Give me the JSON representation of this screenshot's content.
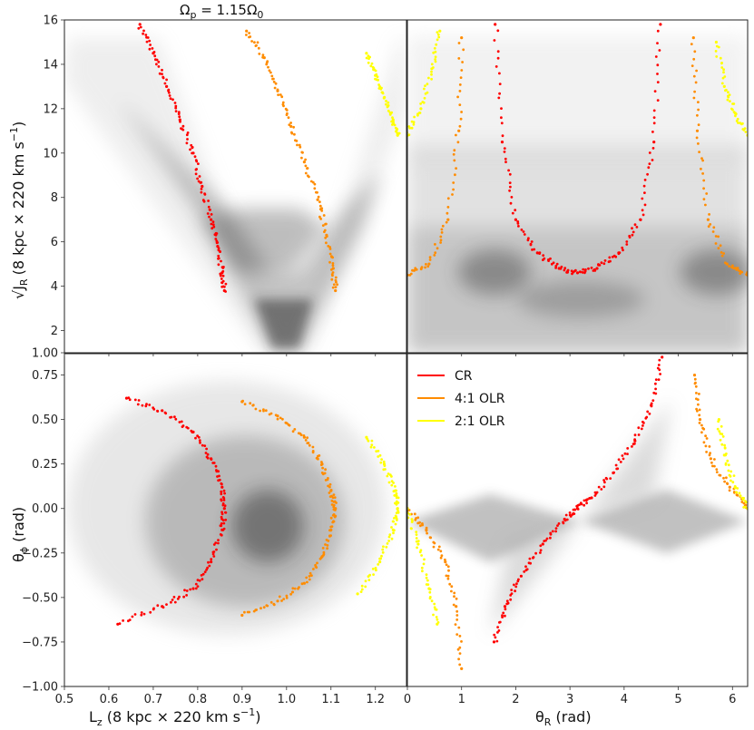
{
  "figure": {
    "title": "Ω",
    "title_sub": "p",
    "title_rest": " = 1.15Ω",
    "title_sub2": "0"
  },
  "colors": {
    "CR": "#ff0000",
    "OLR41": "#ff8c00",
    "OLR21": "#ffff00",
    "density": "#000000"
  },
  "legend": {
    "entries": [
      {
        "label": "CR",
        "color": "#ff0000"
      },
      {
        "label": "4:1 OLR",
        "color": "#ff8c00"
      },
      {
        "label": "2:1 OLR",
        "color": "#ffff00"
      }
    ]
  },
  "axes": {
    "ylabel_top": "(8 kpc × 220 km s",
    "ylabel_top_sqrt": "√J",
    "ylabel_top_sub": "R",
    "ylabel_top_sup": "−1",
    "ylabel_top_close": ")",
    "ylabel_bottom": "θ",
    "ylabel_bottom_sub": "ϕ",
    "ylabel_bottom_unit": " (rad)",
    "xlabel_left": "L",
    "xlabel_left_sub": "z",
    "xlabel_left_unit": " (8 kpc × 220 km s",
    "xlabel_left_sup": "−1",
    "xlabel_left_close": ")",
    "xlabel_right": "θ",
    "xlabel_right_sub": "R",
    "xlabel_right_unit": " (rad)"
  },
  "chart_data": [
    {
      "type": "scatter",
      "panel": "top-left",
      "xlim": [
        0.5,
        1.27
      ],
      "ylim": [
        1.0,
        16.0
      ],
      "yticks": [
        "1.00",
        "2",
        "4",
        "6",
        "8",
        "10",
        "12",
        "14",
        "16"
      ],
      "ytick_values": [
        1,
        2,
        4,
        6,
        8,
        10,
        12,
        14,
        16
      ],
      "series": [
        {
          "name": "CR",
          "color": "#ff0000",
          "x": [
            0.67,
            0.7,
            0.73,
            0.76,
            0.79,
            0.81,
            0.83,
            0.845,
            0.855,
            0.86
          ],
          "y": [
            15.8,
            14.5,
            13.0,
            11.5,
            10.0,
            8.5,
            7.0,
            5.8,
            4.6,
            3.8
          ]
        },
        {
          "name": "4:1 OLR",
          "color": "#ff8c00",
          "x": [
            0.91,
            0.95,
            0.98,
            1.01,
            1.04,
            1.07,
            1.09,
            1.105,
            1.11
          ],
          "y": [
            15.5,
            14.3,
            12.8,
            11.2,
            9.6,
            7.9,
            6.3,
            4.8,
            3.8
          ]
        },
        {
          "name": "2:1 OLR",
          "color": "#ffff00",
          "x": [
            1.18,
            1.2,
            1.22,
            1.24,
            1.25
          ],
          "y": [
            14.5,
            13.5,
            12.5,
            11.5,
            10.8
          ]
        }
      ]
    },
    {
      "type": "scatter",
      "panel": "top-right",
      "xlim": [
        0,
        6.28
      ],
      "ylim": [
        1.0,
        16.0
      ],
      "series": [
        {
          "name": "CR",
          "color": "#ff0000",
          "x": [
            1.62,
            1.75,
            2.0,
            2.4,
            2.8,
            3.14,
            3.5,
            3.9,
            4.3,
            4.55,
            4.67
          ],
          "y": [
            15.8,
            10.5,
            7.0,
            5.5,
            4.8,
            4.6,
            4.8,
            5.5,
            7.0,
            10.5,
            15.8
          ]
        },
        {
          "name": "4:1 OLR",
          "color": "#ff8c00",
          "x": [
            0.0,
            0.4,
            0.75,
            0.95,
            1.0
          ],
          "y": [
            4.5,
            5.0,
            7.0,
            11.0,
            15.2
          ]
        },
        {
          "name": "4:1 OLR",
          "color": "#ff8c00",
          "x": [
            5.28,
            5.35,
            5.55,
            5.9,
            6.28
          ],
          "y": [
            15.2,
            11.0,
            7.0,
            5.0,
            4.5
          ]
        },
        {
          "name": "2:1 OLR",
          "color": "#ffff00",
          "x": [
            0.0,
            0.25,
            0.45,
            0.6
          ],
          "y": [
            10.8,
            12.0,
            13.8,
            15.5
          ]
        },
        {
          "name": "2:1 OLR",
          "color": "#ffff00",
          "x": [
            5.7,
            5.85,
            6.05,
            6.28
          ],
          "y": [
            15.0,
            13.0,
            11.8,
            10.8
          ]
        }
      ]
    },
    {
      "type": "scatter",
      "panel": "bottom-left",
      "xlim": [
        0.5,
        1.27
      ],
      "ylim": [
        -1.0,
        0.87
      ],
      "xticks": [
        "0.5",
        "0.6",
        "0.7",
        "0.8",
        "0.9",
        "1.0",
        "1.1",
        "1.2"
      ],
      "xtick_values": [
        0.5,
        0.6,
        0.7,
        0.8,
        0.9,
        1.0,
        1.1,
        1.2
      ],
      "yticks": [
        "−1.00",
        "−0.75",
        "−0.50",
        "−0.25",
        "0.00",
        "0.25",
        "0.50",
        "0.75"
      ],
      "ytick_values": [
        -1.0,
        -0.75,
        -0.5,
        -0.25,
        0.0,
        0.25,
        0.5,
        0.75
      ],
      "series": [
        {
          "name": "CR",
          "color": "#ff0000",
          "x": [
            0.64,
            0.72,
            0.79,
            0.83,
            0.855,
            0.86,
            0.855,
            0.83,
            0.79,
            0.72,
            0.62
          ],
          "y": [
            0.62,
            0.55,
            0.43,
            0.28,
            0.12,
            0.0,
            -0.12,
            -0.3,
            -0.45,
            -0.55,
            -0.65
          ]
        },
        {
          "name": "4:1 OLR",
          "color": "#ff8c00",
          "x": [
            0.9,
            0.98,
            1.04,
            1.08,
            1.1,
            1.11,
            1.1,
            1.08,
            1.04,
            0.98,
            0.9
          ],
          "y": [
            0.6,
            0.52,
            0.4,
            0.25,
            0.1,
            0.0,
            -0.12,
            -0.27,
            -0.42,
            -0.52,
            -0.6
          ]
        },
        {
          "name": "2:1 OLR",
          "color": "#ffff00",
          "x": [
            1.18,
            1.22,
            1.245,
            1.25,
            1.24,
            1.21,
            1.16
          ],
          "y": [
            0.4,
            0.25,
            0.1,
            0.0,
            -0.12,
            -0.3,
            -0.48
          ]
        }
      ]
    },
    {
      "type": "scatter",
      "panel": "bottom-right",
      "xlim": [
        0,
        6.28
      ],
      "ylim": [
        -1.0,
        0.87
      ],
      "xticks": [
        "0",
        "1",
        "2",
        "3",
        "4",
        "5",
        "6"
      ],
      "xtick_values": [
        0,
        1,
        2,
        3,
        4,
        5,
        6
      ],
      "series": [
        {
          "name": "CR",
          "color": "#ff0000",
          "x": [
            1.6,
            1.8,
            2.1,
            2.5,
            2.9,
            3.14,
            3.4,
            3.8,
            4.2,
            4.5,
            4.7
          ],
          "y": [
            -0.75,
            -0.55,
            -0.38,
            -0.2,
            -0.06,
            0.0,
            0.06,
            0.2,
            0.38,
            0.58,
            0.85
          ]
        },
        {
          "name": "4:1 OLR",
          "color": "#ff8c00",
          "x": [
            0.0,
            0.35,
            0.7,
            0.9,
            1.0
          ],
          "y": [
            0.0,
            -0.12,
            -0.3,
            -0.55,
            -0.9
          ]
        },
        {
          "name": "4:1 OLR",
          "color": "#ff8c00",
          "x": [
            5.3,
            5.4,
            5.6,
            5.95,
            6.28
          ],
          "y": [
            0.75,
            0.5,
            0.28,
            0.12,
            0.0
          ]
        },
        {
          "name": "2:1 OLR",
          "color": "#ffff00",
          "x": [
            0.0,
            0.2,
            0.4,
            0.55
          ],
          "y": [
            0.0,
            -0.2,
            -0.45,
            -0.65
          ]
        },
        {
          "name": "2:1 OLR",
          "color": "#ffff00",
          "x": [
            5.75,
            5.85,
            6.05,
            6.28
          ],
          "y": [
            0.5,
            0.3,
            0.12,
            0.0
          ]
        }
      ]
    }
  ]
}
